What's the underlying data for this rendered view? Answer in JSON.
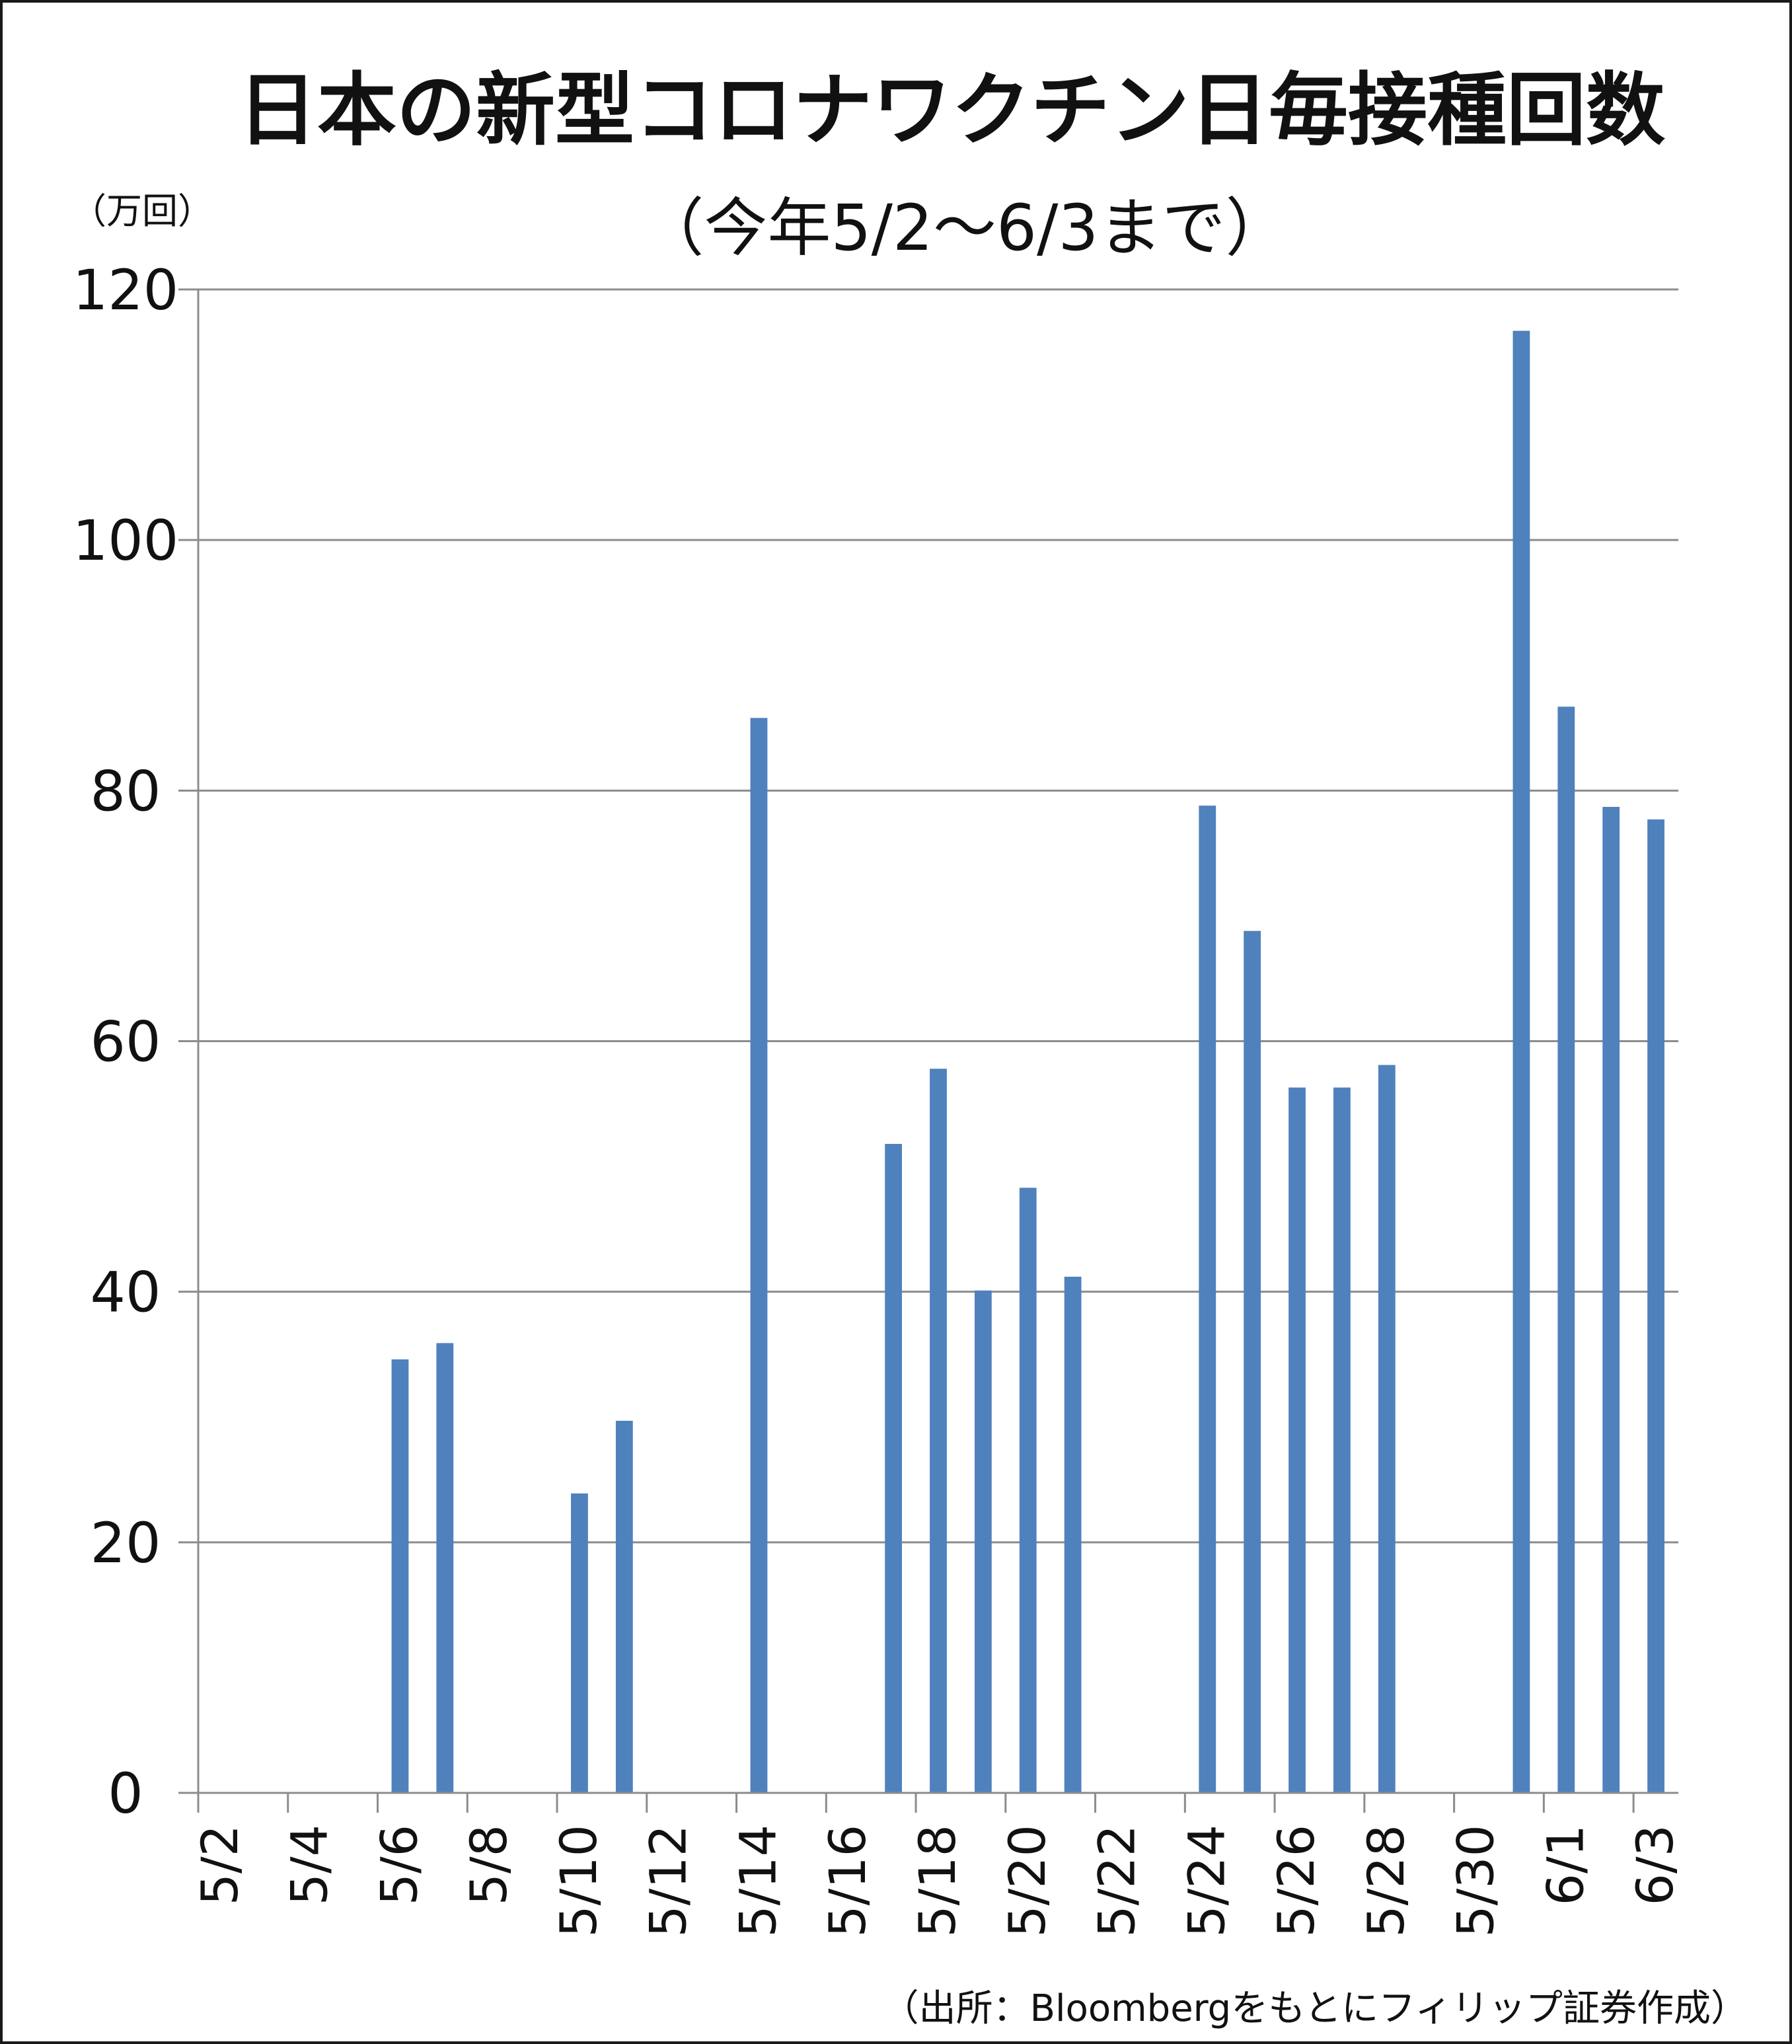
{
  "chart_data": {
    "type": "bar",
    "title": "日本の新型コロナワクチン日毎接種回数",
    "subtitle": "（今年5/2〜6/3まで）",
    "ylabel": "（万回）",
    "source": "（出所：Bloombergをもとにフィリップ証券作成）",
    "ylim": [
      0,
      120
    ],
    "yticks": [
      0,
      20,
      40,
      60,
      80,
      100,
      120
    ],
    "grid": true,
    "bar_color": "#4f81bd",
    "categories": [
      "5/2",
      "5/3",
      "5/4",
      "5/5",
      "5/6",
      "5/7",
      "5/8",
      "5/9",
      "5/10",
      "5/11",
      "5/12",
      "5/13",
      "5/14",
      "5/15",
      "5/16",
      "5/17",
      "5/18",
      "5/19",
      "5/20",
      "5/21",
      "5/22",
      "5/23",
      "5/24",
      "5/25",
      "5/26",
      "5/27",
      "5/28",
      "5/29",
      "5/30",
      "5/31",
      "6/1",
      "6/2",
      "6/3"
    ],
    "tick_labels": [
      "5/2",
      "",
      "5/4",
      "",
      "5/6",
      "",
      "5/8",
      "",
      "5/10",
      "",
      "5/12",
      "",
      "5/14",
      "",
      "5/16",
      "",
      "5/18",
      "",
      "5/20",
      "",
      "5/22",
      "",
      "5/24",
      "",
      "5/26",
      "",
      "5/28",
      "",
      "5/30",
      "",
      "6/1",
      "",
      "6/3"
    ],
    "values": [
      0,
      0,
      0,
      0,
      34.6,
      35.9,
      0,
      0,
      23.9,
      29.7,
      0,
      0,
      85.8,
      0,
      0,
      51.8,
      57.8,
      40.1,
      48.3,
      41.2,
      0,
      0,
      78.8,
      68.8,
      56.3,
      56.3,
      58.1,
      0,
      0,
      116.7,
      86.7,
      78.7,
      77.7
    ]
  }
}
